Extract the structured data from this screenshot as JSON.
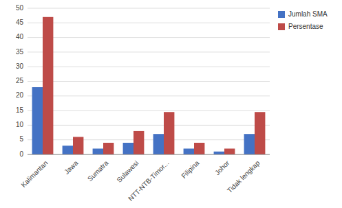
{
  "chart_data": {
    "type": "bar",
    "categories": [
      "Kalimantan",
      "Jawa",
      "Sumatra",
      "Sulawesi",
      "NTT-NTB-Timor...",
      "Filipina",
      "Johor",
      "Tidak lengkap"
    ],
    "series": [
      {
        "name": "Jumlah SMA",
        "color": "#4472C4",
        "values": [
          23,
          3,
          2,
          4,
          7,
          2,
          1,
          7
        ]
      },
      {
        "name": "Persentase",
        "color": "#BE4B48",
        "values": [
          47,
          6,
          4,
          8,
          14.5,
          4,
          2,
          14.5
        ]
      }
    ],
    "ylim": [
      0,
      50
    ],
    "yticks": [
      0,
      5,
      10,
      15,
      20,
      25,
      30,
      35,
      40,
      45,
      50
    ],
    "grid": true,
    "legend": "right"
  }
}
